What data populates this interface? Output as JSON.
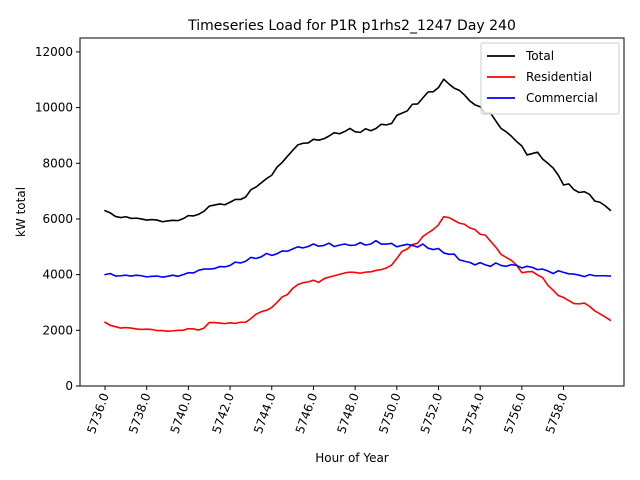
{
  "chart_data": {
    "type": "line",
    "title": "Timeseries Load for P1R p1rhs2_1247  Day 240",
    "xlabel": "Hour of Year",
    "ylabel": "kW total",
    "xlim": [
      5734.8,
      5760.9
    ],
    "ylim": [
      0,
      12500
    ],
    "xticks": [
      5736,
      5738,
      5740,
      5742,
      5744,
      5746,
      5748,
      5750,
      5752,
      5754,
      5756,
      5758
    ],
    "xtick_labels": [
      "5736.0",
      "5738.0",
      "5740.0",
      "5742.0",
      "5744.0",
      "5746.0",
      "5748.0",
      "5750.0",
      "5752.0",
      "5754.0",
      "5756.0",
      "5758.0"
    ],
    "yticks": [
      0,
      2000,
      4000,
      6000,
      8000,
      10000,
      12000
    ],
    "ytick_labels": [
      "0",
      "2000",
      "4000",
      "6000",
      "8000",
      "10000",
      "12000"
    ],
    "legend_position": "top-right",
    "x_start": 5736.0,
    "x_step": 0.25,
    "series": [
      {
        "name": "Total",
        "color": "#000000",
        "values": [
          6300,
          6220,
          6090,
          6050,
          6080,
          6020,
          6030,
          6000,
          5960,
          5980,
          5960,
          5900,
          5930,
          5950,
          5940,
          6010,
          6120,
          6110,
          6170,
          6280,
          6460,
          6500,
          6540,
          6510,
          6600,
          6700,
          6700,
          6790,
          7050,
          7150,
          7300,
          7450,
          7570,
          7860,
          8030,
          8250,
          8460,
          8660,
          8720,
          8730,
          8860,
          8830,
          8880,
          8980,
          9100,
          9060,
          9140,
          9250,
          9130,
          9110,
          9240,
          9170,
          9250,
          9400,
          9380,
          9430,
          9720,
          9800,
          9880,
          10120,
          10130,
          10350,
          10560,
          10570,
          10720,
          11020,
          10850,
          10700,
          10620,
          10450,
          10240,
          10100,
          10030,
          9780,
          9800,
          9520,
          9250,
          9130,
          8970,
          8780,
          8620,
          8300,
          8350,
          8400,
          8150,
          8000,
          7830,
          7570,
          7220,
          7260,
          7050,
          6950,
          6980,
          6880,
          6640,
          6600,
          6470,
          6310
        ]
      },
      {
        "name": "Residential",
        "color": "#ff0000",
        "values": [
          2290,
          2180,
          2130,
          2080,
          2100,
          2080,
          2050,
          2030,
          2040,
          2030,
          1990,
          1990,
          1970,
          1980,
          2000,
          2000,
          2060,
          2050,
          2010,
          2080,
          2280,
          2280,
          2260,
          2240,
          2270,
          2250,
          2290,
          2290,
          2420,
          2580,
          2670,
          2720,
          2820,
          3000,
          3200,
          3280,
          3500,
          3640,
          3710,
          3740,
          3800,
          3720,
          3850,
          3910,
          3960,
          4010,
          4060,
          4090,
          4080,
          4050,
          4090,
          4100,
          4150,
          4180,
          4240,
          4340,
          4580,
          4830,
          4920,
          5080,
          5130,
          5370,
          5500,
          5620,
          5790,
          6080,
          6050,
          5950,
          5850,
          5810,
          5680,
          5620,
          5450,
          5420,
          5200,
          4990,
          4730,
          4620,
          4510,
          4340,
          4070,
          4100,
          4110,
          3990,
          3890,
          3620,
          3440,
          3250,
          3180,
          3070,
          2960,
          2950,
          2980,
          2860,
          2700,
          2590,
          2480,
          2360
        ]
      },
      {
        "name": "Commercial",
        "color": "#0000ff",
        "values": [
          4000,
          4040,
          3950,
          3960,
          3980,
          3950,
          3980,
          3960,
          3920,
          3940,
          3950,
          3910,
          3940,
          3980,
          3940,
          4000,
          4070,
          4060,
          4160,
          4200,
          4200,
          4220,
          4290,
          4280,
          4330,
          4450,
          4420,
          4480,
          4620,
          4580,
          4640,
          4760,
          4690,
          4750,
          4850,
          4840,
          4920,
          5000,
          4960,
          5010,
          5100,
          5020,
          5050,
          5130,
          5010,
          5060,
          5100,
          5050,
          5060,
          5150,
          5060,
          5100,
          5220,
          5100,
          5100,
          5120,
          5000,
          5050,
          5090,
          5050,
          4990,
          5100,
          4950,
          4900,
          4940,
          4780,
          4730,
          4740,
          4530,
          4480,
          4440,
          4350,
          4430,
          4350,
          4300,
          4420,
          4330,
          4300,
          4360,
          4330,
          4240,
          4300,
          4260,
          4180,
          4200,
          4130,
          4040,
          4140,
          4080,
          4030,
          4020,
          3980,
          3930,
          4000,
          3960,
          3960,
          3960,
          3950
        ]
      }
    ]
  }
}
